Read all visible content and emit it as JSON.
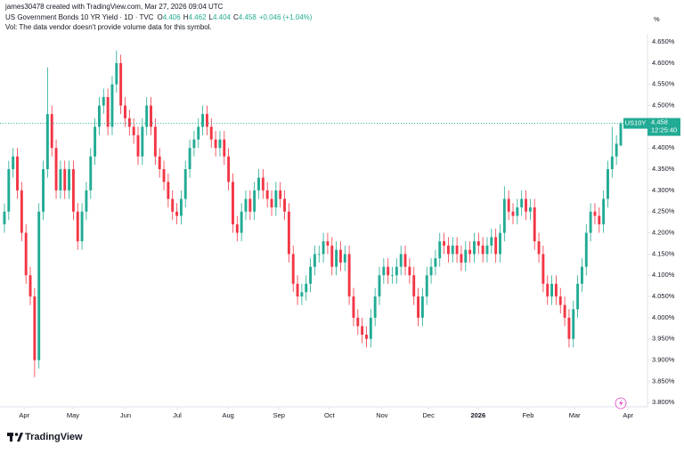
{
  "header": {
    "credit": "james30478 created with TradingView.com, Mar 27, 2026 09:04 UTC",
    "symbol": "US Government Bonds 10 YR Yield · 1D · TVC",
    "ohlc": [
      {
        "label": "O",
        "value": "4.406"
      },
      {
        "label": "H",
        "value": "4.462"
      },
      {
        "label": "L",
        "value": "4.404"
      },
      {
        "label": "C",
        "value": "4.458"
      }
    ],
    "change": "+0.046 (+1.04%)",
    "volume_note": "Vol: The data vendor doesn't provide volume data for this symbol.",
    "unit": "%"
  },
  "footer": {
    "brand": "TradingView"
  },
  "chart_data": {
    "type": "candlestick",
    "up_color": "#22ab94",
    "down_color": "#f23645",
    "open": [
      4.22,
      4.25,
      4.35,
      4.38,
      4.3,
      4.2,
      4.1,
      4.05,
      3.9,
      4.25,
      4.35,
      4.48,
      4.4,
      4.3,
      4.35,
      4.3,
      4.35,
      4.25,
      4.18,
      4.25,
      4.3,
      4.38,
      4.45,
      4.5,
      4.52,
      4.45,
      4.55,
      4.6,
      4.5,
      4.47,
      4.45,
      4.43,
      4.38,
      4.45,
      4.5,
      4.45,
      4.38,
      4.35,
      4.32,
      4.28,
      4.25,
      4.24,
      4.28,
      4.35,
      4.4,
      4.42,
      4.45,
      4.48,
      4.45,
      4.42,
      4.4,
      4.42,
      4.38,
      4.32,
      4.22,
      4.2,
      4.25,
      4.28,
      4.25,
      4.3,
      4.33,
      4.3,
      4.28,
      4.26,
      4.3,
      4.28,
      4.25,
      4.15,
      4.08,
      4.05,
      4.06,
      4.08,
      4.12,
      4.15,
      4.15,
      4.18,
      4.17,
      4.12,
      4.16,
      4.13,
      4.15,
      4.05,
      4.0,
      3.98,
      3.96,
      3.95,
      4.0,
      4.05,
      4.1,
      4.12,
      4.1,
      4.1,
      4.12,
      4.15,
      4.12,
      4.1,
      4.05,
      4.0,
      4.05,
      4.1,
      4.12,
      4.14,
      4.18,
      4.17,
      4.15,
      4.17,
      4.15,
      4.13,
      4.16,
      4.15,
      4.18,
      4.17,
      4.15,
      4.17,
      4.19,
      4.15,
      4.2,
      4.28,
      4.25,
      4.24,
      4.26,
      4.28,
      4.25,
      4.26,
      4.18,
      4.15,
      4.08,
      4.05,
      4.08,
      4.05,
      4.03,
      4.0,
      3.95,
      4.02,
      4.08,
      4.12,
      4.2,
      4.25,
      4.24,
      4.22,
      4.28,
      4.35,
      4.38,
      4.406
    ],
    "high": [
      4.27,
      4.37,
      4.4,
      4.4,
      4.32,
      4.22,
      4.12,
      4.07,
      4.27,
      4.37,
      4.59,
      4.5,
      4.42,
      4.37,
      4.37,
      4.37,
      4.37,
      4.27,
      4.27,
      4.32,
      4.4,
      4.47,
      4.52,
      4.54,
      4.54,
      4.57,
      4.63,
      4.62,
      4.52,
      4.49,
      4.47,
      4.45,
      4.47,
      4.52,
      4.52,
      4.47,
      4.4,
      4.37,
      4.34,
      4.3,
      4.27,
      4.3,
      4.37,
      4.42,
      4.44,
      4.47,
      4.5,
      4.5,
      4.47,
      4.44,
      4.44,
      4.44,
      4.4,
      4.34,
      4.24,
      4.27,
      4.3,
      4.3,
      4.32,
      4.35,
      4.35,
      4.32,
      4.3,
      4.32,
      4.32,
      4.3,
      4.27,
      4.17,
      4.1,
      4.08,
      4.1,
      4.14,
      4.17,
      4.17,
      4.2,
      4.2,
      4.19,
      4.18,
      4.18,
      4.17,
      4.17,
      4.07,
      4.02,
      4.0,
      3.98,
      4.02,
      4.07,
      4.12,
      4.14,
      4.14,
      4.12,
      4.14,
      4.17,
      4.17,
      4.14,
      4.12,
      4.07,
      4.07,
      4.12,
      4.14,
      4.16,
      4.2,
      4.2,
      4.19,
      4.19,
      4.19,
      4.17,
      4.18,
      4.18,
      4.2,
      4.2,
      4.19,
      4.19,
      4.21,
      4.21,
      4.22,
      4.31,
      4.3,
      4.27,
      4.28,
      4.3,
      4.3,
      4.28,
      4.28,
      4.2,
      4.17,
      4.1,
      4.1,
      4.1,
      4.07,
      4.05,
      4.02,
      4.04,
      4.1,
      4.14,
      4.22,
      4.27,
      4.27,
      4.26,
      4.3,
      4.37,
      4.45,
      4.43,
      4.462
    ],
    "low": [
      4.2,
      4.23,
      4.33,
      4.28,
      4.18,
      4.08,
      4.03,
      3.86,
      3.88,
      4.23,
      4.33,
      4.38,
      4.28,
      4.28,
      4.28,
      4.28,
      4.23,
      4.16,
      4.16,
      4.23,
      4.28,
      4.36,
      4.43,
      4.48,
      4.43,
      4.43,
      4.53,
      4.48,
      4.45,
      4.43,
      4.41,
      4.36,
      4.36,
      4.43,
      4.43,
      4.36,
      4.33,
      4.3,
      4.26,
      4.23,
      4.22,
      4.22,
      4.26,
      4.33,
      4.38,
      4.4,
      4.43,
      4.43,
      4.4,
      4.38,
      4.38,
      4.36,
      4.3,
      4.2,
      4.18,
      4.18,
      4.23,
      4.23,
      4.23,
      4.28,
      4.28,
      4.26,
      4.24,
      4.24,
      4.26,
      4.23,
      4.13,
      4.06,
      4.03,
      4.03,
      4.04,
      4.06,
      4.1,
      4.13,
      4.13,
      4.15,
      4.1,
      4.1,
      4.11,
      4.11,
      4.03,
      3.98,
      3.96,
      3.94,
      3.93,
      3.93,
      3.98,
      4.03,
      4.08,
      4.08,
      4.08,
      4.08,
      4.1,
      4.1,
      4.08,
      4.03,
      3.98,
      3.98,
      4.03,
      4.08,
      4.1,
      4.12,
      4.15,
      4.13,
      4.13,
      4.13,
      4.11,
      4.11,
      4.13,
      4.13,
      4.15,
      4.13,
      4.13,
      4.15,
      4.13,
      4.13,
      4.18,
      4.23,
      4.22,
      4.22,
      4.24,
      4.23,
      4.23,
      4.16,
      4.13,
      4.06,
      4.03,
      4.03,
      4.03,
      4.01,
      3.98,
      3.93,
      3.93,
      4.0,
      4.06,
      4.1,
      4.18,
      4.22,
      4.2,
      4.2,
      4.26,
      4.33,
      4.36,
      4.404
    ],
    "close": [
      4.25,
      4.35,
      4.38,
      4.3,
      4.2,
      4.1,
      4.05,
      3.9,
      4.25,
      4.35,
      4.48,
      4.4,
      4.3,
      4.35,
      4.3,
      4.35,
      4.25,
      4.18,
      4.25,
      4.3,
      4.38,
      4.45,
      4.5,
      4.52,
      4.45,
      4.55,
      4.6,
      4.5,
      4.47,
      4.45,
      4.43,
      4.38,
      4.45,
      4.5,
      4.45,
      4.38,
      4.35,
      4.32,
      4.28,
      4.25,
      4.24,
      4.28,
      4.35,
      4.4,
      4.42,
      4.45,
      4.48,
      4.45,
      4.42,
      4.4,
      4.42,
      4.38,
      4.32,
      4.22,
      4.2,
      4.25,
      4.28,
      4.25,
      4.3,
      4.33,
      4.3,
      4.28,
      4.26,
      4.3,
      4.28,
      4.25,
      4.15,
      4.08,
      4.05,
      4.06,
      4.08,
      4.12,
      4.15,
      4.15,
      4.18,
      4.17,
      4.12,
      4.16,
      4.13,
      4.15,
      4.05,
      4.0,
      3.98,
      3.96,
      3.95,
      4.0,
      4.05,
      4.1,
      4.12,
      4.1,
      4.1,
      4.12,
      4.15,
      4.12,
      4.1,
      4.05,
      4.0,
      4.05,
      4.1,
      4.12,
      4.14,
      4.18,
      4.17,
      4.15,
      4.17,
      4.15,
      4.13,
      4.16,
      4.15,
      4.18,
      4.17,
      4.15,
      4.17,
      4.19,
      4.15,
      4.2,
      4.28,
      4.25,
      4.24,
      4.26,
      4.28,
      4.25,
      4.26,
      4.18,
      4.15,
      4.08,
      4.05,
      4.08,
      4.05,
      4.03,
      4.0,
      3.95,
      4.02,
      4.08,
      4.12,
      4.2,
      4.25,
      4.24,
      4.22,
      4.28,
      4.35,
      4.38,
      4.41,
      4.458
    ],
    "xlim": [
      -1.03,
      149.2
    ],
    "xticks": [
      {
        "value": 4.6,
        "label": "Apr"
      },
      {
        "value": 15.9,
        "label": "May"
      },
      {
        "value": 28.1,
        "label": "Jun"
      },
      {
        "value": 40.1,
        "label": "Jul"
      },
      {
        "value": 51.9,
        "label": "Aug"
      },
      {
        "value": 63.7,
        "label": "Sep"
      },
      {
        "value": 75.4,
        "label": "Oct"
      },
      {
        "value": 87.6,
        "label": "Nov"
      },
      {
        "value": 98.4,
        "label": "Dec"
      },
      {
        "value": 109.9,
        "label": "2026",
        "bold": true
      },
      {
        "value": 121.5,
        "label": "Feb"
      },
      {
        "value": 132.3,
        "label": "Mar"
      },
      {
        "value": 144.7,
        "label": "Apr"
      }
    ],
    "ylim": [
      3.79,
      4.669
    ],
    "yticks": [
      {
        "value": 3.8,
        "label": "3.800%"
      },
      {
        "value": 3.85,
        "label": "3.850%"
      },
      {
        "value": 3.9,
        "label": "3.900%"
      },
      {
        "value": 3.95,
        "label": "3.950%"
      },
      {
        "value": 4.0,
        "label": "4.000%"
      },
      {
        "value": 4.05,
        "label": "4.050%"
      },
      {
        "value": 4.1,
        "label": "4.100%"
      },
      {
        "value": 4.15,
        "label": "4.150%"
      },
      {
        "value": 4.2,
        "label": "4.200%"
      },
      {
        "value": 4.25,
        "label": "4.250%"
      },
      {
        "value": 4.3,
        "label": "4.300%"
      },
      {
        "value": 4.35,
        "label": "4.350%"
      },
      {
        "value": 4.4,
        "label": "4.400%"
      },
      {
        "value": 4.45,
        "label": "4.450%"
      },
      {
        "value": 4.5,
        "label": "4.500%"
      },
      {
        "value": 4.55,
        "label": "4.550%"
      },
      {
        "value": 4.6,
        "label": "4.600%"
      },
      {
        "value": 4.65,
        "label": "4.650%"
      }
    ],
    "last": {
      "symbol": "US10Y",
      "value": 4.458,
      "countdown": "12:25:40"
    }
  }
}
